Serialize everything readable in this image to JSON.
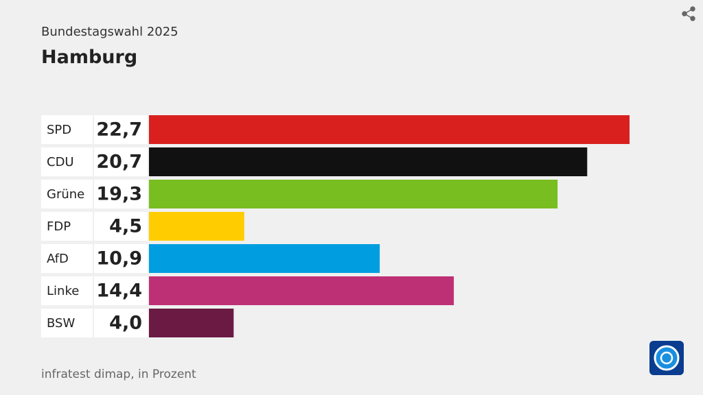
{
  "chart_data": {
    "type": "bar",
    "orientation": "horizontal",
    "subtitle": "Bundestagswahl 2025",
    "title": "Hamburg",
    "categories": [
      "SPD",
      "CDU",
      "Grüne",
      "FDP",
      "AfD",
      "Linke",
      "BSW"
    ],
    "values": [
      22.7,
      20.7,
      19.3,
      4.5,
      10.9,
      14.4,
      4.0
    ],
    "value_labels": [
      "22,7",
      "20,7",
      "19,3",
      "4,5",
      "10,9",
      "14,4",
      "4,0"
    ],
    "colors": [
      "#d9201f",
      "#111111",
      "#78be20",
      "#ffcc00",
      "#009ee0",
      "#be3075",
      "#6b1a43"
    ],
    "source": "infratest dimap, in Prozent"
  }
}
